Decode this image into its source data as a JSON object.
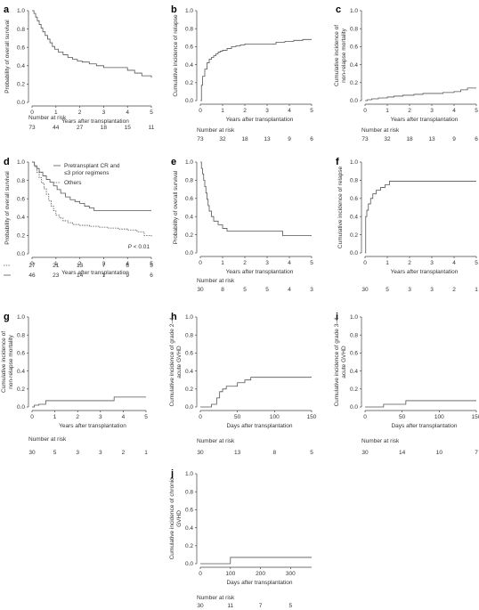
{
  "chart_data": [
    {
      "id": "a",
      "type": "line",
      "panel_label": "a",
      "ylabel": "Probability of overall survival",
      "xlabel": "Years after transplantation",
      "xlim": [
        0,
        5
      ],
      "ylim": [
        0,
        1
      ],
      "xticks": [
        "0",
        "1",
        "2",
        "3",
        "4",
        "5"
      ],
      "yticks": [
        "0.0",
        "0.2",
        "0.4",
        "0.6",
        "0.8",
        "1.0"
      ],
      "series": [
        {
          "style": "solid",
          "x": [
            0,
            0.08,
            0.15,
            0.22,
            0.3,
            0.38,
            0.45,
            0.55,
            0.65,
            0.75,
            0.85,
            0.95,
            1.1,
            1.3,
            1.5,
            1.7,
            1.9,
            2.1,
            2.4,
            2.7,
            3.0,
            3.4,
            3.8,
            4.0,
            4.3,
            4.6,
            5.0
          ],
          "y": [
            1.0,
            0.97,
            0.93,
            0.89,
            0.85,
            0.81,
            0.77,
            0.73,
            0.69,
            0.65,
            0.61,
            0.58,
            0.55,
            0.52,
            0.49,
            0.47,
            0.45,
            0.44,
            0.42,
            0.4,
            0.38,
            0.38,
            0.38,
            0.35,
            0.32,
            0.29,
            0.27
          ]
        }
      ],
      "risk_title": "Number at risk",
      "risk_rows": [
        [
          "73",
          "44",
          "27",
          "18",
          "15",
          "11"
        ]
      ]
    },
    {
      "id": "b",
      "type": "line",
      "panel_label": "b",
      "ylabel": "Cumulative incidence of relapse",
      "xlabel": "Years after transplantation",
      "xlim": [
        0,
        5
      ],
      "ylim": [
        0,
        1
      ],
      "xticks": [
        "0",
        "1",
        "2",
        "3",
        "4",
        "5"
      ],
      "yticks": [
        "0.0",
        "0.2",
        "0.4",
        "0.6",
        "0.8",
        "1.0"
      ],
      "series": [
        {
          "style": "solid",
          "x": [
            0,
            0.05,
            0.1,
            0.2,
            0.3,
            0.4,
            0.5,
            0.6,
            0.7,
            0.8,
            0.9,
            1.0,
            1.2,
            1.4,
            1.6,
            1.8,
            2.0,
            2.3,
            2.6,
            3.0,
            3.4,
            3.8,
            4.2,
            4.6,
            5.0
          ],
          "y": [
            0,
            0.17,
            0.27,
            0.35,
            0.42,
            0.46,
            0.48,
            0.5,
            0.52,
            0.54,
            0.55,
            0.56,
            0.58,
            0.6,
            0.61,
            0.62,
            0.63,
            0.63,
            0.63,
            0.63,
            0.65,
            0.66,
            0.67,
            0.68,
            0.68
          ]
        }
      ],
      "risk_title": "Number at risk",
      "risk_rows": [
        [
          "73",
          "32",
          "18",
          "13",
          "9",
          "6"
        ]
      ]
    },
    {
      "id": "c",
      "type": "line",
      "panel_label": "c",
      "ylabel": "Cumulative incidence of non-relapse mortality",
      "xlabel": "Years after transplantation",
      "xlim": [
        0,
        5
      ],
      "ylim": [
        0,
        1
      ],
      "xticks": [
        "0",
        "1",
        "2",
        "3",
        "4",
        "5"
      ],
      "yticks": [
        "0.0",
        "0.2",
        "0.4",
        "0.6",
        "0.8",
        "1.0"
      ],
      "series": [
        {
          "style": "solid",
          "x": [
            0,
            0.1,
            0.3,
            0.6,
            1.0,
            1.3,
            1.7,
            2.2,
            2.6,
            3.0,
            3.5,
            4.0,
            4.3,
            4.6,
            5.0
          ],
          "y": [
            0,
            0.01,
            0.02,
            0.03,
            0.04,
            0.05,
            0.06,
            0.07,
            0.08,
            0.08,
            0.09,
            0.1,
            0.12,
            0.14,
            0.14
          ]
        }
      ],
      "risk_title": "Number at risk",
      "risk_rows": [
        [
          "73",
          "32",
          "18",
          "13",
          "9",
          "6"
        ]
      ]
    },
    {
      "id": "d",
      "type": "line",
      "panel_label": "d",
      "ylabel": "Probability of overall survival",
      "xlabel": "Years after transplantation",
      "xlim": [
        0,
        5
      ],
      "ylim": [
        0,
        1
      ],
      "xticks": [
        "0",
        "1",
        "2",
        "3",
        "4",
        "5"
      ],
      "yticks": [
        "0.0",
        "0.2",
        "0.4",
        "0.6",
        "0.8",
        "1.0"
      ],
      "legend": [
        "Pretransplant CR and",
        "≤3 prior regimens",
        "Others"
      ],
      "annotation_prefix": "P",
      "annotation": " < 0.01",
      "series": [
        {
          "style": "solid",
          "x": [
            0,
            0.1,
            0.2,
            0.3,
            0.45,
            0.6,
            0.75,
            0.9,
            1.05,
            1.2,
            1.4,
            1.6,
            1.8,
            2.0,
            2.2,
            2.4,
            2.6,
            3.0,
            3.5,
            4.0,
            4.5,
            5.0
          ],
          "y": [
            1.0,
            0.96,
            0.93,
            0.89,
            0.85,
            0.81,
            0.78,
            0.74,
            0.7,
            0.66,
            0.62,
            0.59,
            0.57,
            0.55,
            0.52,
            0.5,
            0.47,
            0.47,
            0.47,
            0.47,
            0.47,
            0.47
          ]
        },
        {
          "style": "dashed",
          "x": [
            0,
            0.1,
            0.2,
            0.3,
            0.4,
            0.5,
            0.6,
            0.7,
            0.8,
            0.9,
            1.0,
            1.15,
            1.3,
            1.5,
            1.7,
            2.0,
            2.4,
            2.8,
            3.2,
            3.6,
            4.0,
            4.4,
            4.7,
            5.0
          ],
          "y": [
            1.0,
            0.95,
            0.89,
            0.83,
            0.77,
            0.71,
            0.65,
            0.58,
            0.52,
            0.47,
            0.42,
            0.39,
            0.36,
            0.34,
            0.32,
            0.31,
            0.3,
            0.29,
            0.28,
            0.27,
            0.26,
            0.24,
            0.2,
            0.19
          ]
        }
      ],
      "risk_title": "",
      "risk_rows": [
        [
          "27",
          "21",
          "13",
          "7",
          "6",
          "5"
        ],
        [
          "46",
          "23",
          "14",
          "1",
          "9",
          "6"
        ]
      ]
    },
    {
      "id": "e",
      "type": "line",
      "panel_label": "e",
      "ylabel": "Probability of overall survival",
      "xlabel": "Years after transplantation",
      "xlim": [
        0,
        5
      ],
      "ylim": [
        0,
        1
      ],
      "xticks": [
        "0",
        "1",
        "2",
        "3",
        "4",
        "5"
      ],
      "yticks": [
        "0.0",
        "0.2",
        "0.4",
        "0.6",
        "0.8",
        "1.0"
      ],
      "series": [
        {
          "style": "solid",
          "x": [
            0,
            0.05,
            0.1,
            0.15,
            0.2,
            0.25,
            0.3,
            0.35,
            0.4,
            0.5,
            0.6,
            0.8,
            1.0,
            1.2,
            1.5,
            2.0,
            3.0,
            3.7,
            4.5,
            5.0
          ],
          "y": [
            1.0,
            0.93,
            0.87,
            0.8,
            0.73,
            0.66,
            0.59,
            0.52,
            0.46,
            0.4,
            0.35,
            0.31,
            0.27,
            0.24,
            0.24,
            0.24,
            0.24,
            0.19,
            0.19,
            0.19
          ]
        }
      ],
      "risk_title": "Number at risk",
      "risk_rows": [
        [
          "30",
          "8",
          "5",
          "5",
          "4",
          "3"
        ]
      ]
    },
    {
      "id": "f",
      "type": "line",
      "panel_label": "f",
      "ylabel": "Cumulative incidence of relapse",
      "xlabel": "Years after transplantation",
      "xlim": [
        0,
        5
      ],
      "ylim": [
        0,
        1
      ],
      "xticks": [
        "0",
        "1",
        "2",
        "3",
        "4",
        "5"
      ],
      "yticks": [
        "0.0",
        "0.2",
        "0.4",
        "0.6",
        "0.8",
        "1.0"
      ],
      "series": [
        {
          "style": "solid",
          "x": [
            0,
            0.03,
            0.08,
            0.15,
            0.25,
            0.35,
            0.5,
            0.7,
            0.9,
            1.1,
            1.5,
            2.0,
            3.0,
            4.0,
            5.0
          ],
          "y": [
            0,
            0.4,
            0.47,
            0.54,
            0.6,
            0.65,
            0.69,
            0.72,
            0.75,
            0.79,
            0.79,
            0.79,
            0.79,
            0.79,
            0.79
          ]
        }
      ],
      "risk_title": "",
      "risk_rows": [
        [
          "30",
          "5",
          "3",
          "3",
          "2",
          "1"
        ]
      ]
    },
    {
      "id": "g",
      "type": "line",
      "panel_label": "g",
      "ylabel": "Cumulative incidence of non-relapse mortality",
      "xlabel": "Years after transplantation",
      "xlim": [
        0,
        5
      ],
      "ylim": [
        0,
        1
      ],
      "xticks": [
        "0",
        "1",
        "2",
        "3",
        "4",
        "5"
      ],
      "yticks": [
        "0.0",
        "0.2",
        "0.4",
        "0.6",
        "0.8",
        "1.0"
      ],
      "series": [
        {
          "style": "solid",
          "x": [
            0,
            0.1,
            0.3,
            0.6,
            1.0,
            2.0,
            3.0,
            3.6,
            4.2,
            5.0
          ],
          "y": [
            0,
            0.02,
            0.03,
            0.07,
            0.07,
            0.07,
            0.07,
            0.11,
            0.11,
            0.11
          ]
        }
      ],
      "risk_title": "Number at risk",
      "risk_rows": [
        [
          "30",
          "5",
          "3",
          "3",
          "2",
          "1"
        ]
      ]
    },
    {
      "id": "h",
      "type": "line",
      "panel_label": "h",
      "ylabel": "Cumulative incidence of grade 2–4 acute GVHD",
      "xlabel": "Days after transplantation",
      "xlim": [
        0,
        150
      ],
      "ylim": [
        0,
        1
      ],
      "xticks": [
        "0",
        "50",
        "100",
        "150"
      ],
      "yticks": [
        "0.0",
        "0.2",
        "0.4",
        "0.6",
        "0.8",
        "1.0"
      ],
      "series": [
        {
          "style": "solid",
          "x": [
            0,
            15,
            22,
            26,
            30,
            35,
            40,
            50,
            60,
            68,
            80,
            100,
            120,
            150
          ],
          "y": [
            0,
            0.03,
            0.1,
            0.17,
            0.2,
            0.23,
            0.23,
            0.27,
            0.3,
            0.33,
            0.33,
            0.33,
            0.33,
            0.33
          ]
        }
      ],
      "risk_title": "Number at risk",
      "risk_rows": [
        [
          "30",
          "13",
          "8",
          "5"
        ]
      ]
    },
    {
      "id": "i",
      "type": "line",
      "panel_label": "i",
      "ylabel": "Cumulative incidence of grade 3–4 acute GVHD",
      "xlabel": "Days after transplantation",
      "xlim": [
        0,
        150
      ],
      "ylim": [
        0,
        1
      ],
      "xticks": [
        "0",
        "50",
        "100",
        "150"
      ],
      "yticks": [
        "0.0",
        "0.2",
        "0.4",
        "0.6",
        "0.8",
        "1.0"
      ],
      "series": [
        {
          "style": "solid",
          "x": [
            0,
            20,
            25,
            40,
            55,
            80,
            100,
            150
          ],
          "y": [
            0,
            0.0,
            0.03,
            0.03,
            0.07,
            0.07,
            0.07,
            0.07
          ]
        }
      ],
      "risk_title": "Number at risk",
      "risk_rows": [
        [
          "30",
          "14",
          "10",
          "7"
        ]
      ]
    },
    {
      "id": "j",
      "type": "line",
      "panel_label": "j",
      "ylabel": "Cumulative incidence of chronic GVHD",
      "xlabel": "Days after transplantation",
      "xlim": [
        0,
        370
      ],
      "ylim": [
        0,
        1
      ],
      "xticks": [
        "0",
        "100",
        "200",
        "300"
      ],
      "yticks": [
        "0.0",
        "0.2",
        "0.4",
        "0.6",
        "0.8",
        "1.0"
      ],
      "series": [
        {
          "style": "solid",
          "x": [
            0,
            50,
            100,
            200,
            300,
            370
          ],
          "y": [
            0,
            0.0,
            0.07,
            0.07,
            0.07,
            0.07
          ]
        }
      ],
      "risk_title": "Number at risk",
      "risk_rows": [
        [
          "30",
          "11",
          "7",
          "5"
        ]
      ]
    }
  ]
}
